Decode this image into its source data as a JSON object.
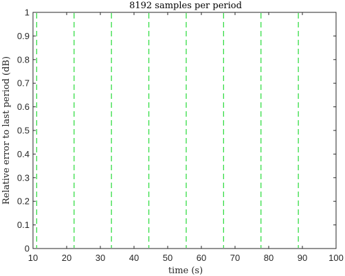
{
  "chart_data": {
    "type": "line",
    "title": "8192 samples per period",
    "xlabel": "time (s)",
    "ylabel": "Relative error to last period (dB)",
    "xlim": [
      10,
      100
    ],
    "ylim": [
      0,
      1
    ],
    "x_ticks": [
      10,
      20,
      30,
      40,
      50,
      60,
      70,
      80,
      90,
      100
    ],
    "x_tick_labels": [
      "10",
      "20",
      "30",
      "40",
      "50",
      "60",
      "70",
      "80",
      "90",
      "100"
    ],
    "y_ticks": [
      0,
      0.1,
      0.2,
      0.3,
      0.4,
      0.5,
      0.6,
      0.7,
      0.8,
      0.9,
      1
    ],
    "y_tick_labels": [
      "0",
      "0.1",
      "0.2",
      "0.3",
      "0.4",
      "0.5",
      "0.6",
      "0.7",
      "0.8",
      "0.9",
      "1"
    ],
    "grid": false,
    "vertical_markers": {
      "x": [
        11.1,
        22.2,
        33.3,
        44.4,
        55.5,
        66.6,
        77.7,
        88.8
      ],
      "color": "#33dd44",
      "style": "dashed"
    },
    "series": []
  }
}
